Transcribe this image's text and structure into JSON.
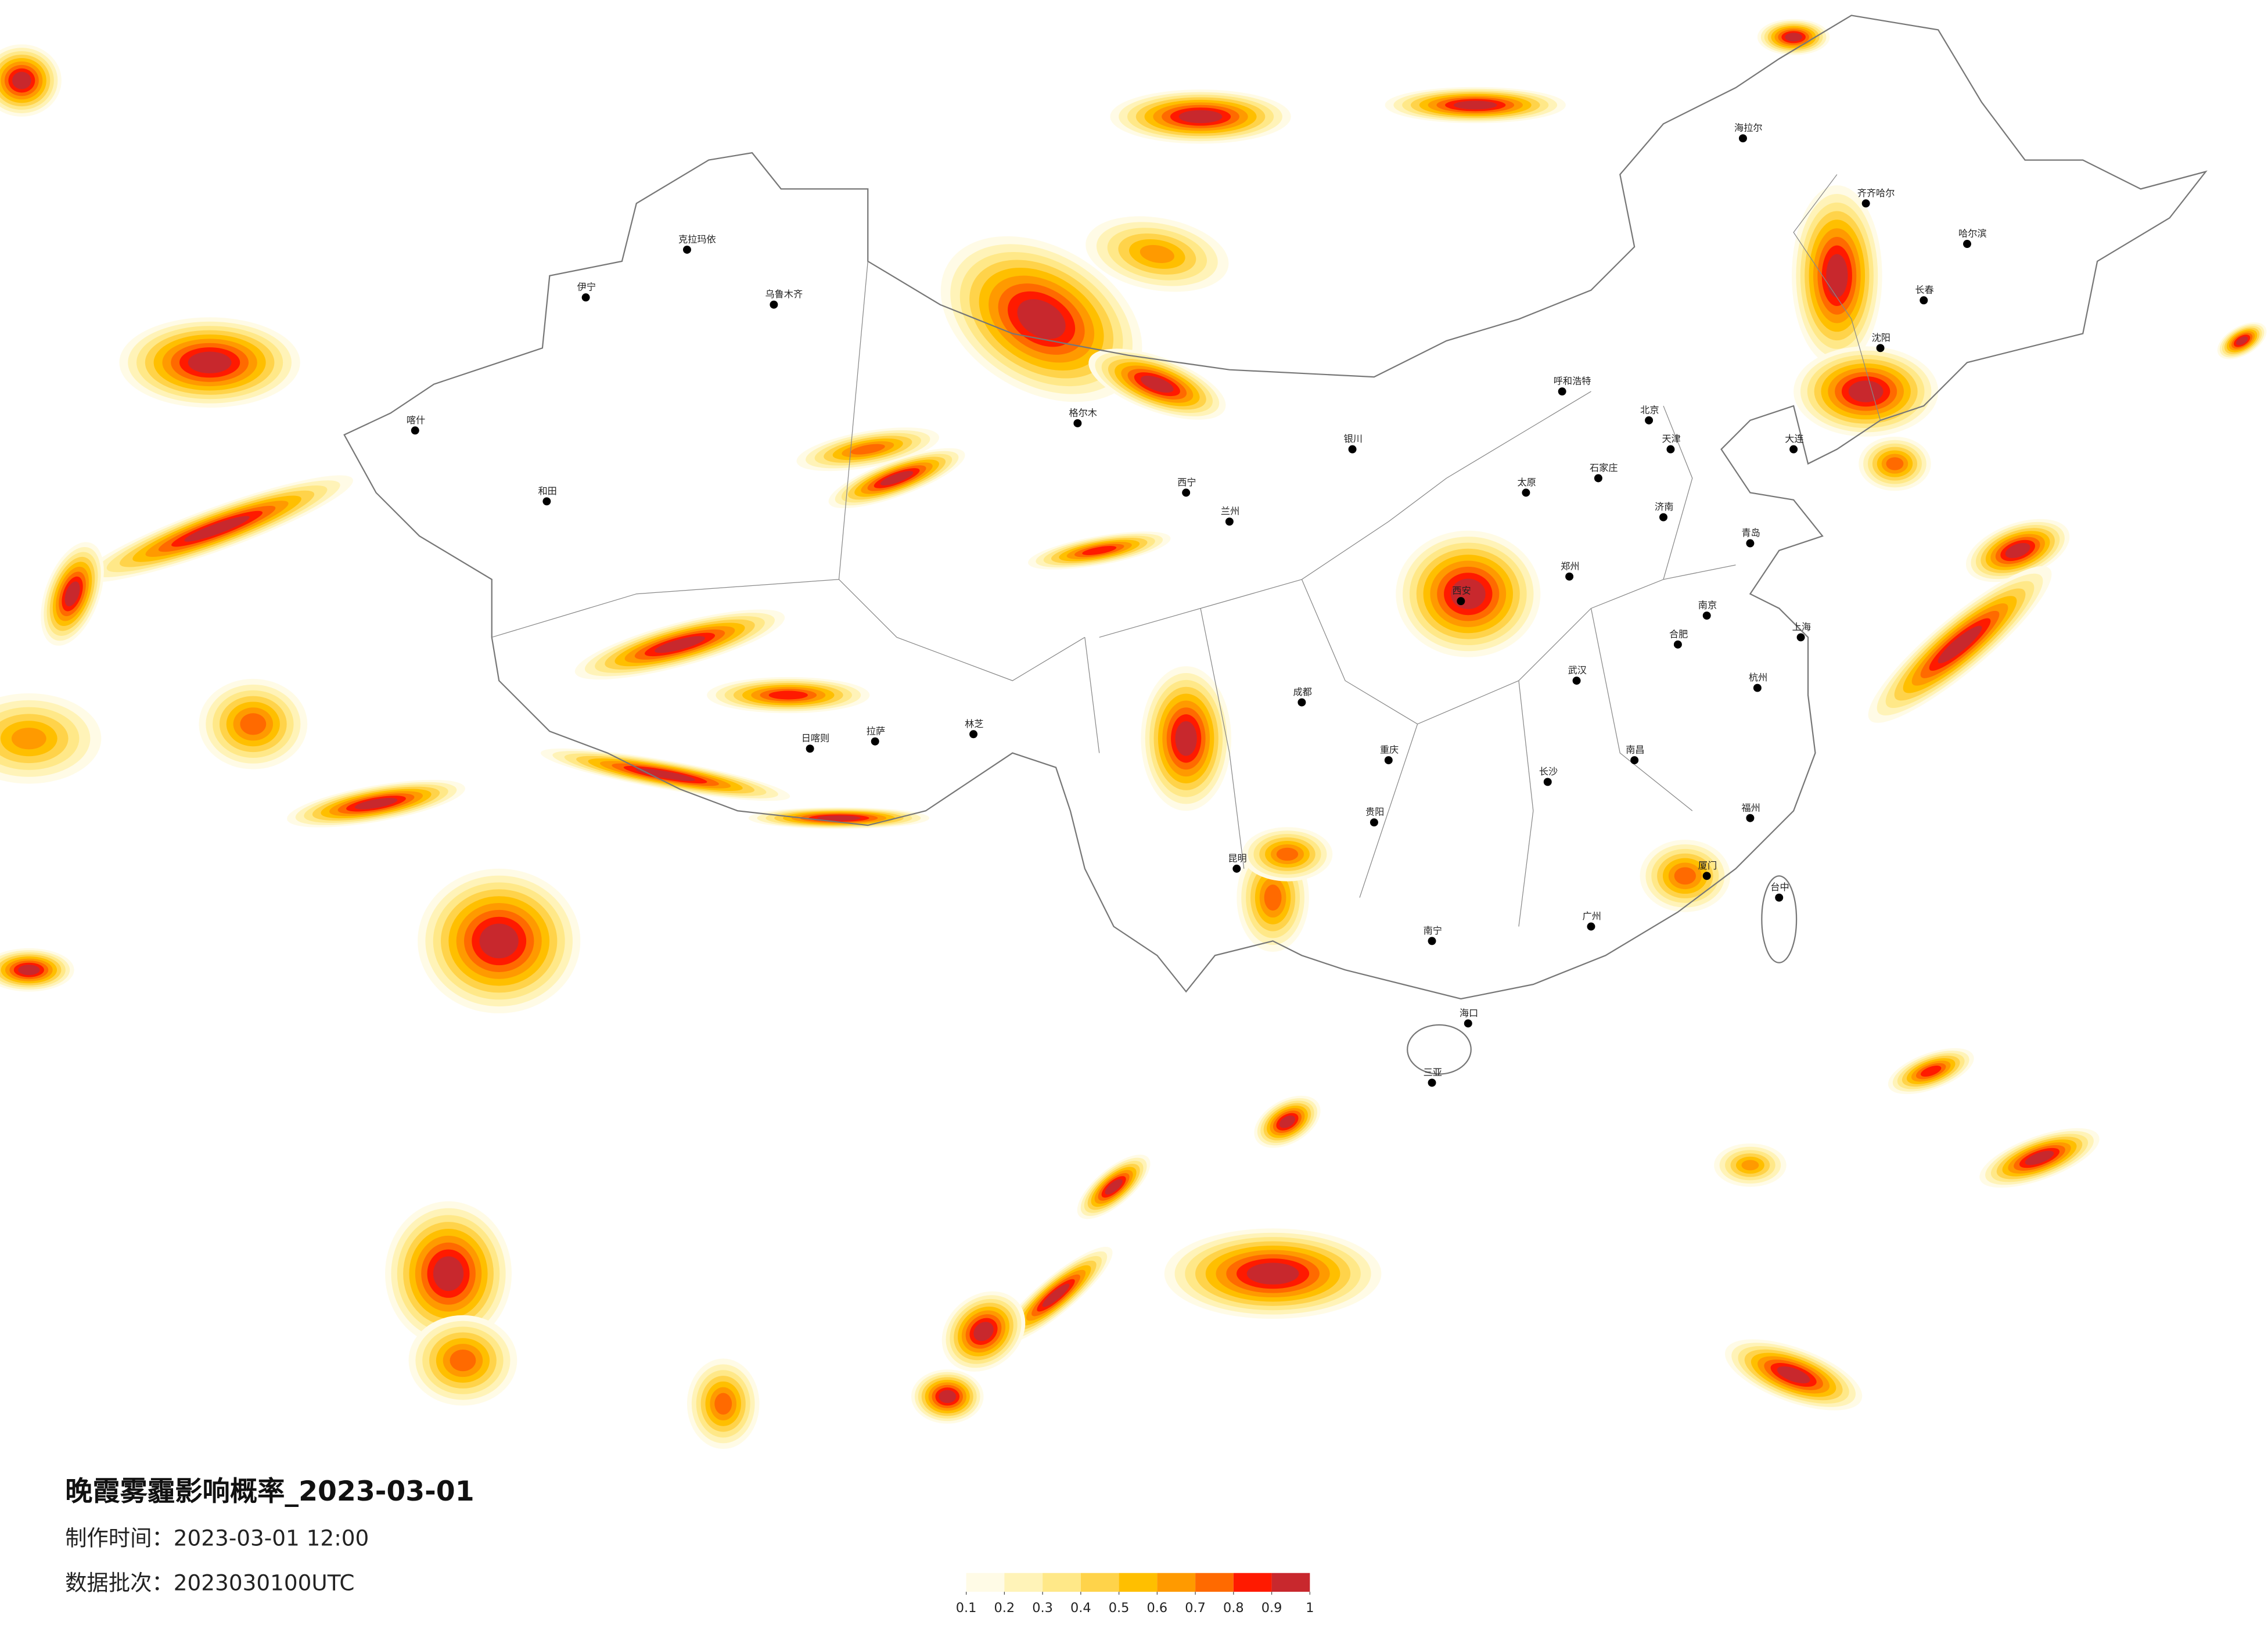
{
  "title": "晚霞雾霾影响概率_2023-03-01",
  "made_time": "制作时间：2023-03-01 12:00",
  "batch": "数据批次：2023030100UTC",
  "legend": {
    "ticks": [
      0.1,
      0.2,
      0.3,
      0.4,
      0.5,
      0.6,
      0.7,
      0.8,
      0.9,
      1
    ],
    "colors": [
      "#fffbe6",
      "#fff3b8",
      "#ffe888",
      "#ffd34a",
      "#ffbf00",
      "#ff9a00",
      "#ff6a00",
      "#ff1a00",
      "#c8282d"
    ]
  },
  "cities": [
    "哈尔滨",
    "长春",
    "沈阳",
    "北京",
    "天津",
    "石家庄",
    "太原",
    "呼和浩特",
    "济南",
    "郑州",
    "西安",
    "武汉",
    "长沙",
    "南昌",
    "合肥",
    "南京",
    "上海",
    "杭州",
    "福州",
    "广州",
    "南宁",
    "海口",
    "昆明",
    "贵阳",
    "成都",
    "重庆",
    "兰州",
    "西宁",
    "银川",
    "乌鲁木齐",
    "拉萨",
    "喀什",
    "和田",
    "伊宁",
    "克拉玛依",
    "海拉尔",
    "齐齐哈尔",
    "台中",
    "大连",
    "青岛",
    "厦门",
    "三亚",
    "格尔木",
    "林芝",
    "日喀则"
  ]
}
